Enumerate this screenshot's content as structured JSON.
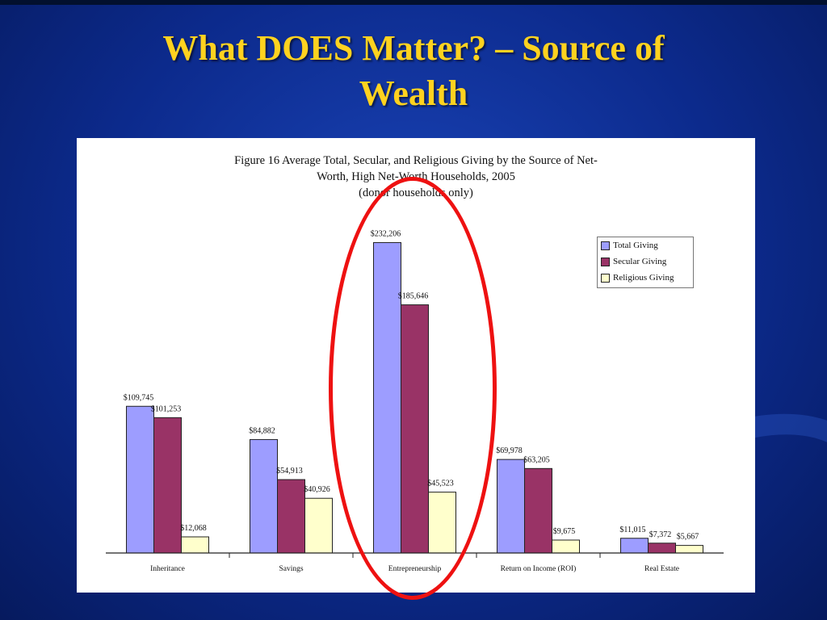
{
  "slide": {
    "title_line1": "What DOES Matter? – Source of",
    "title_line2": "Wealth"
  },
  "colors": {
    "total": "#9d9dff",
    "secular": "#993366",
    "religious": "#ffffcc",
    "highlight": "#ee1111",
    "title": "#ffd21f"
  },
  "chart_data": {
    "type": "bar",
    "title_line1": "Figure 16 Average Total, Secular, and Religious Giving by the Source of Net-",
    "title_line2": "Worth, High Net-Worth Households, 2005",
    "title_line3": "(donor households only)",
    "categories": [
      "Inheritance",
      "Savings",
      "Entrepreneurship",
      "Return on Income (ROI)",
      "Real Estate"
    ],
    "series": [
      {
        "name": "Total Giving",
        "values": [
          109745,
          84882,
          232206,
          69978,
          11015
        ],
        "labels": [
          "$109,745",
          "$84,882",
          "$232,206",
          "$69,978",
          "$11,015"
        ]
      },
      {
        "name": "Secular Giving",
        "values": [
          101253,
          54913,
          185646,
          63205,
          7372
        ],
        "labels": [
          "$101,253",
          "$54,913",
          "$185,646",
          "$63,205",
          "$7,372"
        ]
      },
      {
        "name": "Religious Giving",
        "values": [
          12068,
          40926,
          45523,
          9675,
          5667
        ],
        "labels": [
          "$12,068",
          "$40,926",
          "$45,523",
          "$9,675",
          "$5,667"
        ]
      }
    ],
    "ylim": [
      0,
      250000
    ],
    "legend_position": "top-right",
    "grid": false,
    "annotation": "red ellipse around Entrepreneurship"
  }
}
